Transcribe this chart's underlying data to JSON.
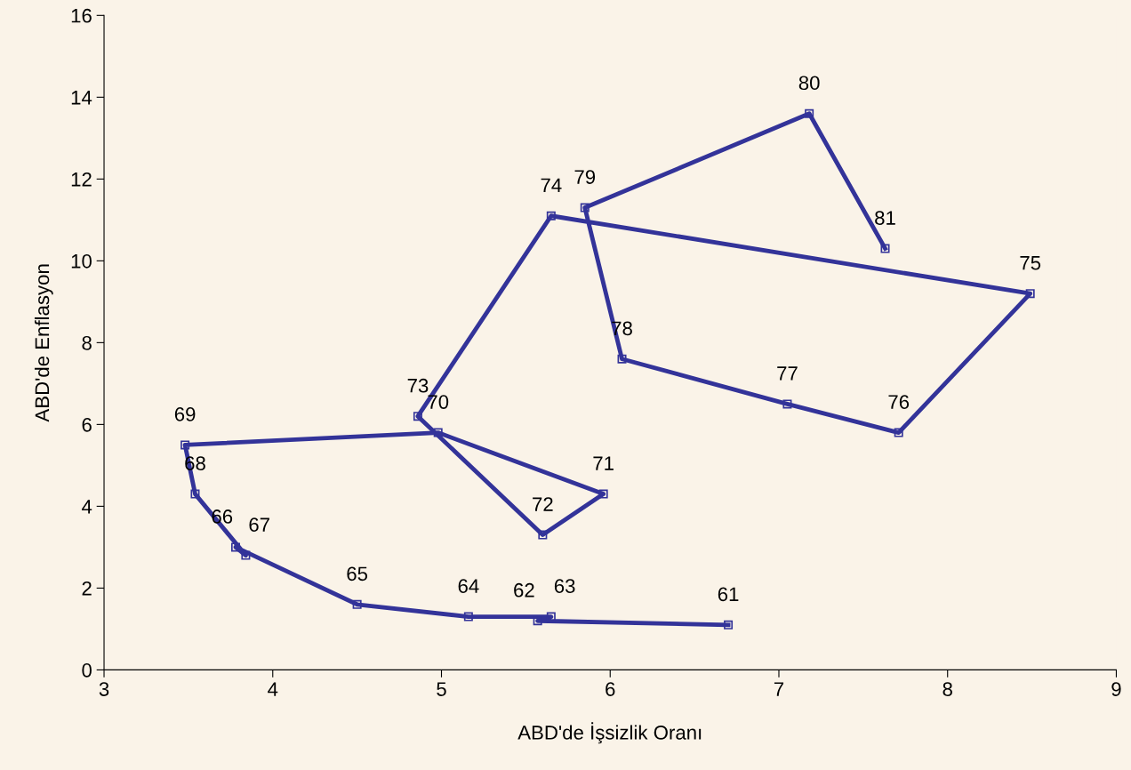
{
  "chart_data": {
    "type": "line",
    "xlabel": "ABD'de İşsizlik Oranı",
    "ylabel": "ABD'de Enflasyon",
    "x": [
      6.7,
      5.57,
      5.65,
      5.16,
      4.5,
      3.78,
      3.84,
      3.54,
      3.48,
      4.98,
      5.96,
      5.6,
      4.86,
      5.65,
      8.49,
      7.71,
      7.05,
      6.07,
      5.85,
      7.18,
      7.63
    ],
    "series": [
      {
        "color": "#333399",
        "values": [
          1.1,
          1.2,
          1.3,
          1.3,
          1.6,
          3.0,
          2.8,
          4.3,
          5.5,
          5.8,
          4.3,
          3.3,
          6.2,
          11.1,
          9.2,
          5.8,
          6.5,
          7.6,
          11.3,
          13.6,
          10.3
        ]
      }
    ],
    "annotations": [
      {
        "text": "61",
        "x": 6.7,
        "y": 1.1
      },
      {
        "text": "62",
        "x": 5.57,
        "y": 1.2
      },
      {
        "text": "63",
        "x": 5.65,
        "y": 1.3
      },
      {
        "text": "64",
        "x": 5.16,
        "y": 1.3
      },
      {
        "text": "65",
        "x": 4.5,
        "y": 1.6
      },
      {
        "text": "66",
        "x": 3.78,
        "y": 3.0
      },
      {
        "text": "67",
        "x": 3.84,
        "y": 2.8
      },
      {
        "text": "68",
        "x": 3.54,
        "y": 4.3
      },
      {
        "text": "69",
        "x": 3.48,
        "y": 5.5
      },
      {
        "text": "70",
        "x": 4.98,
        "y": 5.8
      },
      {
        "text": "71",
        "x": 5.96,
        "y": 4.3
      },
      {
        "text": "72",
        "x": 5.6,
        "y": 3.3
      },
      {
        "text": "73",
        "x": 4.86,
        "y": 6.2
      },
      {
        "text": "74",
        "x": 5.65,
        "y": 11.1
      },
      {
        "text": "75",
        "x": 8.49,
        "y": 9.2
      },
      {
        "text": "76",
        "x": 7.71,
        "y": 5.8
      },
      {
        "text": "77",
        "x": 7.05,
        "y": 6.5
      },
      {
        "text": "78",
        "x": 6.07,
        "y": 7.6
      },
      {
        "text": "79",
        "x": 5.85,
        "y": 11.3
      },
      {
        "text": "80",
        "x": 7.18,
        "y": 13.6
      },
      {
        "text": "81",
        "x": 7.63,
        "y": 10.3
      }
    ],
    "xlim": [
      3,
      9
    ],
    "xticks": [
      3,
      4,
      5,
      6,
      7,
      8,
      9
    ],
    "ylim": [
      0,
      16
    ],
    "yticks": [
      0,
      2,
      4,
      6,
      8,
      10,
      12,
      14,
      16
    ],
    "marker": "square",
    "line_style": "solid",
    "grid": false
  }
}
